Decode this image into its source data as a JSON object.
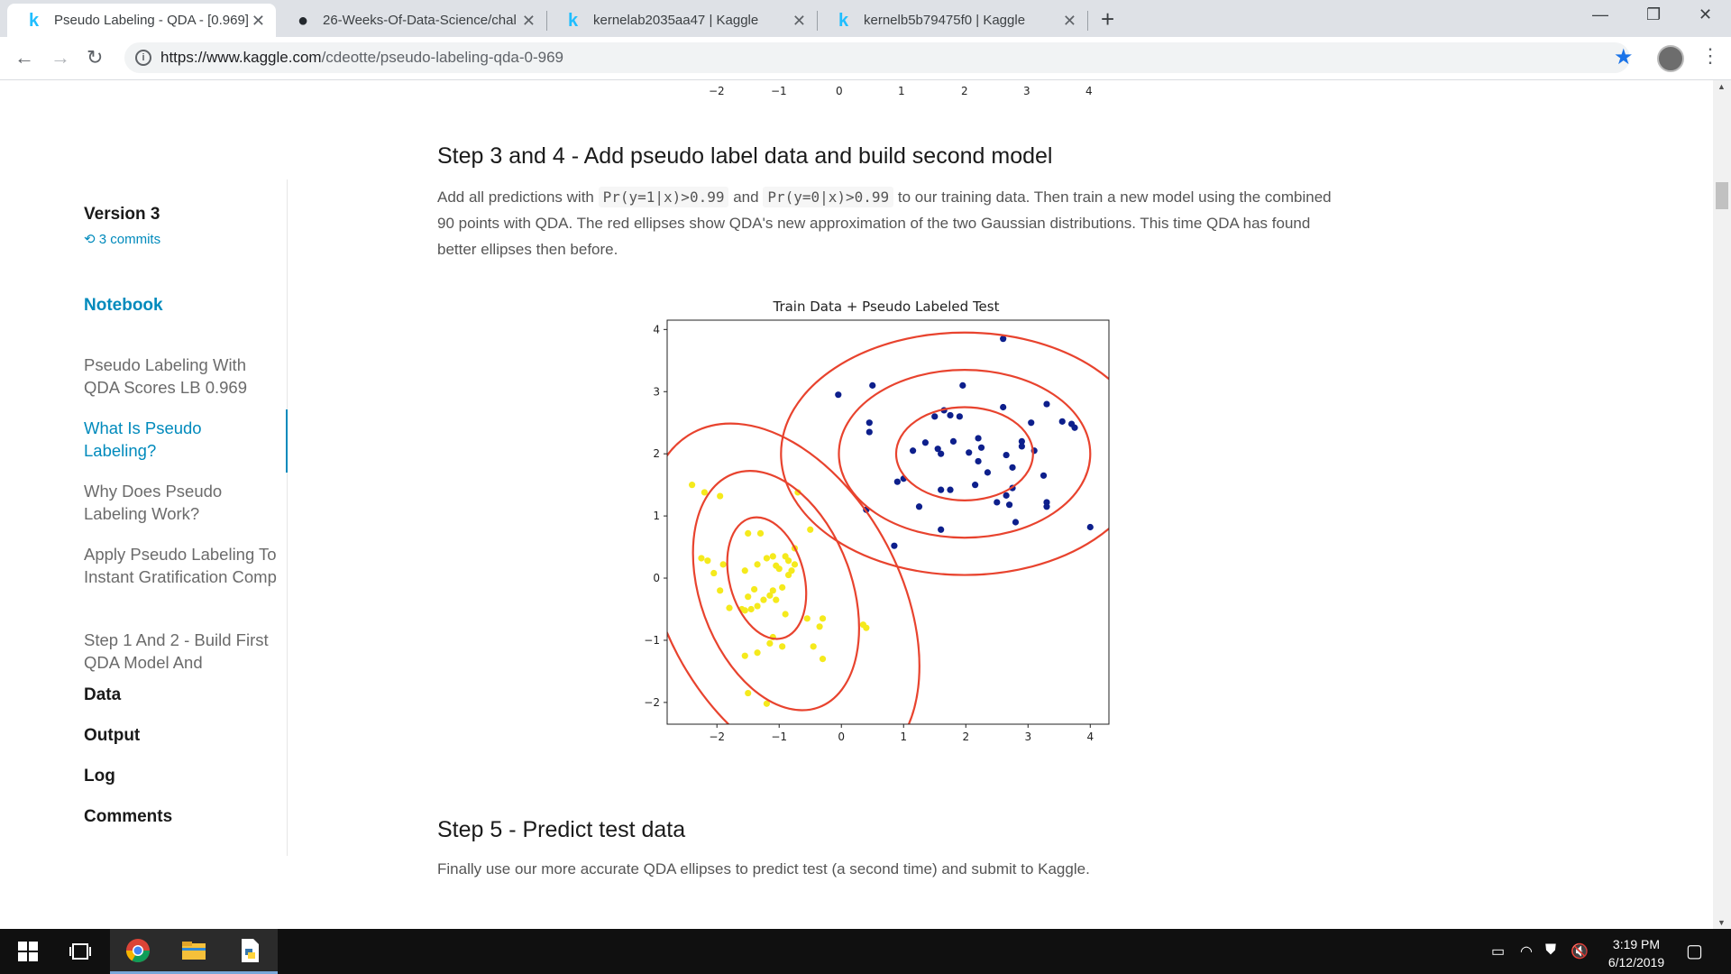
{
  "browser": {
    "tabs": [
      {
        "title": "Pseudo Labeling - QDA - [0.969]",
        "active": true
      },
      {
        "title": "26-Weeks-Of-Data-Science/chall",
        "active": false
      },
      {
        "title": "kernelab2035aa47 | Kaggle",
        "active": false
      },
      {
        "title": "kernelb5b79475f0 | Kaggle",
        "active": false
      }
    ],
    "url_host": "https://www.kaggle.com",
    "url_path": "/cdeotte/pseudo-labeling-qda-0-969"
  },
  "sidebar": {
    "version": "Version 3",
    "commits": "3 commits",
    "notebook_label": "Notebook",
    "items": [
      {
        "label": "Pseudo Labeling With QDA Scores LB 0.969"
      },
      {
        "label": "What Is Pseudo Labeling?"
      },
      {
        "label": "Why Does Pseudo Labeling Work?"
      },
      {
        "label": "Apply Pseudo Labeling To Instant Gratification Comp"
      },
      {
        "label": "Step 1 And 2 - Build First QDA Model And"
      }
    ],
    "sections": [
      "Data",
      "Output",
      "Log",
      "Comments"
    ]
  },
  "content": {
    "top_axis_ticks": [
      "−2",
      "−1",
      "0",
      "1",
      "2",
      "3",
      "4"
    ],
    "heading1": "Step 3 and 4 - Add pseudo label data and build second model",
    "para1_a": "Add all predictions with",
    "para1_code1": "Pr(y=1|x)>0.99",
    "para1_b": "and",
    "para1_code2": "Pr(y=0|x)>0.99",
    "para1_c": "to our training data. Then train a new model using the combined 90 points with QDA. The red ellipses show QDA's new approximation of the two Gaussian distributions. This time QDA has found better ellipses then before.",
    "heading2": "Step 5 - Predict test data",
    "para2": "Finally use our more accurate QDA ellipses to predict test (a second time) and submit to Kaggle."
  },
  "chart_data": {
    "type": "scatter",
    "title": "Train Data + Pseudo Labeled Test",
    "xlabel": "",
    "ylabel": "",
    "xlim": [
      -2.8,
      4.3
    ],
    "ylim": [
      -2.35,
      4.15
    ],
    "xticks": [
      -2,
      -1,
      0,
      1,
      2,
      3,
      4
    ],
    "yticks": [
      -2,
      -1,
      0,
      1,
      2,
      3,
      4
    ],
    "xtick_labels": [
      "−2",
      "−1",
      "0",
      "1",
      "2",
      "3",
      "4"
    ],
    "ytick_labels": [
      "−2",
      "−1",
      "0",
      "1",
      "2",
      "3",
      "4"
    ],
    "grid": false,
    "colors": {
      "navy": "#0d1f8c",
      "yellow": "#f5ea1c",
      "ellipse": "#e8432e"
    },
    "series": [
      {
        "color": "#0d1f8c",
        "points": [
          [
            2.6,
            3.85
          ],
          [
            0.5,
            3.1
          ],
          [
            1.95,
            3.1
          ],
          [
            -0.05,
            2.95
          ],
          [
            2.6,
            2.75
          ],
          [
            3.3,
            2.8
          ],
          [
            1.5,
            2.6
          ],
          [
            1.65,
            2.7
          ],
          [
            1.75,
            2.62
          ],
          [
            1.9,
            2.6
          ],
          [
            0.45,
            2.5
          ],
          [
            0.45,
            2.35
          ],
          [
            3.05,
            2.5
          ],
          [
            3.55,
            2.52
          ],
          [
            3.7,
            2.48
          ],
          [
            3.75,
            2.42
          ],
          [
            1.35,
            2.18
          ],
          [
            1.8,
            2.2
          ],
          [
            2.2,
            2.25
          ],
          [
            2.9,
            2.2
          ],
          [
            2.9,
            2.12
          ],
          [
            3.1,
            2.05
          ],
          [
            1.15,
            2.05
          ],
          [
            1.55,
            2.08
          ],
          [
            1.6,
            2.0
          ],
          [
            2.05,
            2.02
          ],
          [
            2.25,
            2.1
          ],
          [
            2.65,
            1.98
          ],
          [
            2.2,
            1.88
          ],
          [
            2.75,
            1.78
          ],
          [
            2.35,
            1.7
          ],
          [
            3.25,
            1.65
          ],
          [
            0.9,
            1.55
          ],
          [
            1.0,
            1.6
          ],
          [
            2.15,
            1.5
          ],
          [
            1.6,
            1.42
          ],
          [
            1.75,
            1.42
          ],
          [
            2.75,
            1.45
          ],
          [
            2.65,
            1.33
          ],
          [
            2.5,
            1.22
          ],
          [
            2.7,
            1.18
          ],
          [
            3.3,
            1.22
          ],
          [
            3.3,
            1.15
          ],
          [
            0.4,
            1.1
          ],
          [
            1.25,
            1.15
          ],
          [
            2.8,
            0.9
          ],
          [
            4.0,
            0.82
          ],
          [
            1.6,
            0.78
          ],
          [
            0.85,
            0.52
          ]
        ]
      },
      {
        "color": "#f5ea1c",
        "points": [
          [
            -2.4,
            1.5
          ],
          [
            -2.2,
            1.38
          ],
          [
            -1.95,
            1.32
          ],
          [
            -0.7,
            1.38
          ],
          [
            -1.5,
            0.72
          ],
          [
            -1.3,
            0.72
          ],
          [
            -0.5,
            0.78
          ],
          [
            -0.75,
            0.48
          ],
          [
            -2.25,
            0.32
          ],
          [
            -2.15,
            0.28
          ],
          [
            -1.9,
            0.22
          ],
          [
            -1.2,
            0.32
          ],
          [
            -1.1,
            0.35
          ],
          [
            -0.9,
            0.35
          ],
          [
            -0.85,
            0.28
          ],
          [
            -1.35,
            0.22
          ],
          [
            -1.05,
            0.2
          ],
          [
            -1.0,
            0.15
          ],
          [
            -0.75,
            0.22
          ],
          [
            -0.8,
            0.12
          ],
          [
            -2.05,
            0.08
          ],
          [
            -1.55,
            0.12
          ],
          [
            -0.85,
            0.05
          ],
          [
            -1.95,
            -0.2
          ],
          [
            -1.4,
            -0.18
          ],
          [
            -1.1,
            -0.2
          ],
          [
            -0.95,
            -0.15
          ],
          [
            -1.5,
            -0.3
          ],
          [
            -1.25,
            -0.35
          ],
          [
            -1.05,
            -0.35
          ],
          [
            -1.15,
            -0.28
          ],
          [
            -1.35,
            -0.45
          ],
          [
            -1.55,
            -0.52
          ],
          [
            -1.45,
            -0.5
          ],
          [
            -1.8,
            -0.48
          ],
          [
            -1.6,
            -0.5
          ],
          [
            -0.9,
            -0.58
          ],
          [
            -0.55,
            -0.65
          ],
          [
            -0.3,
            -0.65
          ],
          [
            -0.35,
            -0.78
          ],
          [
            0.35,
            -0.75
          ],
          [
            0.4,
            -0.8
          ],
          [
            -1.1,
            -0.95
          ],
          [
            -1.15,
            -1.05
          ],
          [
            -0.95,
            -1.1
          ],
          [
            -0.45,
            -1.1
          ],
          [
            -1.35,
            -1.2
          ],
          [
            -1.55,
            -1.25
          ],
          [
            -0.3,
            -1.3
          ],
          [
            -1.5,
            -1.85
          ],
          [
            -1.2,
            -2.02
          ]
        ]
      }
    ],
    "ellipses": [
      {
        "cx": 1.98,
        "cy": 2.0,
        "rx": 1.1,
        "ry": 0.75
      },
      {
        "cx": 1.98,
        "cy": 2.0,
        "rx": 2.02,
        "ry": 1.35
      },
      {
        "cx": 1.98,
        "cy": 2.0,
        "rx": 2.95,
        "ry": 1.95
      },
      {
        "cx": -1.2,
        "cy": 0.0,
        "rx": 0.6,
        "ry": 1.0,
        "angle": 15
      },
      {
        "cx": -1.05,
        "cy": -0.2,
        "rx": 1.22,
        "ry": 2.0,
        "angle": 20
      },
      {
        "cx": -0.95,
        "cy": -0.35,
        "rx": 1.9,
        "ry": 3.05,
        "angle": 28
      }
    ]
  },
  "taskbar": {
    "time": "3:19 PM",
    "date": "6/12/2019"
  }
}
